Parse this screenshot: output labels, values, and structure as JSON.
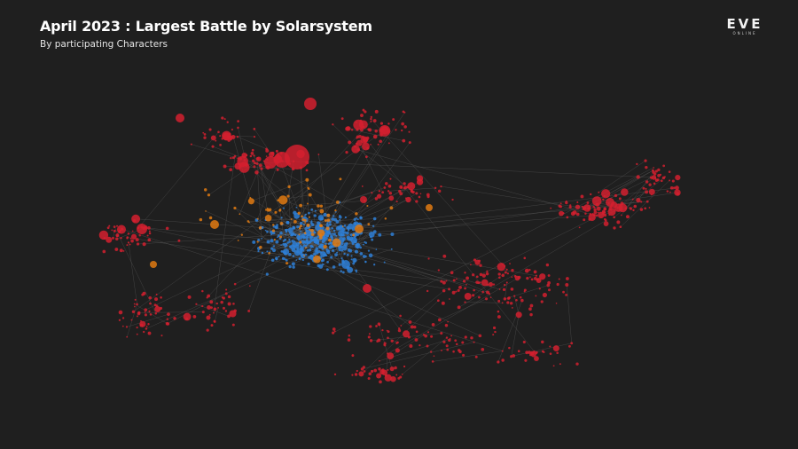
{
  "header": {
    "title": "April 2023 : Largest Battle by Solarsystem",
    "subtitle": "By participating Characters"
  },
  "logo": {
    "main": "EVE",
    "sub": "ONLINE"
  },
  "colors": {
    "background": "#1f1f1f",
    "connection": "#5a5a5a",
    "category_red": "#d3202f",
    "category_blue": "#2e7fd6",
    "category_orange": "#e07a12"
  }
}
